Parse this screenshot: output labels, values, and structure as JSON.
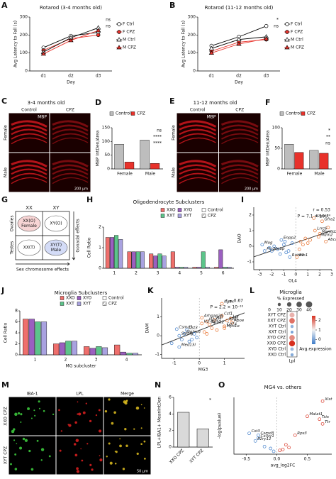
{
  "chart_data": [
    {
      "panel": "A",
      "type": "line",
      "title": "Rotarod (3-4 months old)",
      "x_label": "Day",
      "y_label": "Avg Latency to Fall (s)",
      "categories": [
        "d1",
        "d2",
        "d3"
      ],
      "ylim": [
        0,
        300
      ],
      "yticks": [
        0,
        100,
        200,
        300
      ],
      "series": [
        {
          "name": "F Ctrl",
          "color": "#ffffff",
          "line_color": "#000000",
          "marker": "circle",
          "values": [
            130,
            195,
            215
          ]
        },
        {
          "name": "F CPZ",
          "color": "#e8322b",
          "line_color": "#e8322b",
          "marker": "circle",
          "values": [
            115,
            180,
            200
          ]
        },
        {
          "name": "M Ctrl",
          "color": "#ffffff",
          "line_color": "#000000",
          "marker": "triangle",
          "values": [
            105,
            185,
            240
          ]
        },
        {
          "name": "M CPZ",
          "color": "#e8322b",
          "line_color": "#e8322b",
          "marker": "triangle",
          "values": [
            95,
            170,
            225
          ]
        }
      ],
      "annotations": [
        "ns",
        "ns"
      ]
    },
    {
      "panel": "B",
      "type": "line",
      "title": "Rotarod (11-12 months old)",
      "x_label": "Day",
      "y_label": "Avg Latency to Fall (s)",
      "categories": [
        "d1",
        "d2",
        "d3"
      ],
      "ylim": [
        0,
        300
      ],
      "yticks": [
        0,
        100,
        200,
        300
      ],
      "series": [
        {
          "name": "F Ctrl",
          "color": "#ffffff",
          "line_color": "#000000",
          "marker": "circle",
          "values": [
            140,
            190,
            250
          ]
        },
        {
          "name": "F CPZ",
          "color": "#e8322b",
          "line_color": "#e8322b",
          "marker": "circle",
          "values": [
            110,
            160,
            175
          ]
        },
        {
          "name": "M Ctrl",
          "color": "#ffffff",
          "line_color": "#000000",
          "marker": "triangle",
          "values": [
            125,
            175,
            190
          ]
        },
        {
          "name": "M CPZ",
          "color": "#e8322b",
          "line_color": "#e8322b",
          "marker": "triangle",
          "values": [
            100,
            150,
            180
          ]
        }
      ],
      "annotations": [
        "*",
        "ns"
      ]
    },
    {
      "panel": "D",
      "type": "groupbar",
      "y_label": "MBP IntDen/Area",
      "categories": [
        "Female",
        "Male"
      ],
      "ylim": [
        0,
        150
      ],
      "yticks": [
        0,
        50,
        100,
        150
      ],
      "series": [
        {
          "name": "Control",
          "color": "#bdbdbd",
          "values": [
            90,
            105
          ]
        },
        {
          "name": "CPZ",
          "color": "#e8322b",
          "values": [
            25,
            20
          ]
        }
      ],
      "annotations": [
        "ns",
        "****",
        "****"
      ]
    },
    {
      "panel": "F",
      "type": "groupbar",
      "y_label": "MBP IntDen/Area",
      "categories": [
        "Female",
        "Male"
      ],
      "ylim": [
        0,
        100
      ],
      "yticks": [
        0,
        50,
        100
      ],
      "series": [
        {
          "name": "Control",
          "color": "#bdbdbd",
          "values": [
            60,
            45
          ]
        },
        {
          "name": "CPZ",
          "color": "#e8322b",
          "values": [
            40,
            38
          ]
        }
      ],
      "annotations": [
        "*",
        "**",
        "ns"
      ]
    },
    {
      "panel": "H",
      "type": "groupbar",
      "title": "Oligodendrocyte Subclusters",
      "y_label": "Cell Ratio",
      "categories": [
        "1",
        "2",
        "3",
        "4",
        "5",
        "6"
      ],
      "ylim": [
        0,
        2
      ],
      "yticks": [
        0,
        1,
        2
      ],
      "series": [
        {
          "name": "XXO",
          "color": "#ef6f6c",
          "values": [
            1.5,
            0.8,
            0.7,
            0.8,
            0.05,
            0.05
          ]
        },
        {
          "name": "XYO",
          "color": "#9b5fc0",
          "values": [
            1.5,
            0.8,
            0.6,
            0.05,
            0.05,
            0.9
          ]
        },
        {
          "name": "XXT",
          "color": "#5cc48a",
          "values": [
            1.6,
            0.8,
            0.7,
            0.05,
            0.8,
            0.05
          ]
        },
        {
          "name": "XYT",
          "color": "#a9a2e0",
          "values": [
            1.4,
            0.8,
            0.6,
            0.05,
            0.05,
            0.05
          ]
        }
      ],
      "condition_legend": [
        "Control",
        "CPZ"
      ]
    },
    {
      "panel": "I",
      "type": "scatter",
      "x_label": "OL4",
      "y_label": "DAO",
      "xlim": [
        -3.5,
        3
      ],
      "xticks": [
        -3,
        -2,
        -1,
        0,
        1,
        2,
        3
      ],
      "ylim": [
        -1.5,
        2.5
      ],
      "yticks": [
        -1,
        0,
        1,
        2
      ],
      "annotations": [
        "r = 0.53",
        "P = 7.1 × 10⁻¹⁴"
      ],
      "colors": {
        "neg": "#3d7cc9",
        "pos": "#e8702b",
        "line": "#333333"
      },
      "x": [
        1.5,
        2.2,
        1.6,
        2.0,
        1.9,
        2.5,
        -1.2,
        -2.8,
        -2.6,
        -2.0,
        -0.5,
        0.1,
        -1.5,
        -1.0,
        -0.8,
        -0.3,
        0.4,
        0.8,
        1.2,
        -2.2,
        -1.8,
        -0.6,
        0.6,
        1.0,
        2.7,
        -1.3,
        0.3,
        -0.9
      ],
      "y": [
        1.8,
        1.6,
        1.0,
        0.8,
        0.6,
        0.3,
        0.4,
        0.1,
        -0.3,
        -0.3,
        -0.7,
        -0.7,
        -0.2,
        0.1,
        -0.4,
        0.2,
        0.3,
        0.5,
        0.4,
        -0.1,
        0.0,
        -0.3,
        0.1,
        0.2,
        1.2,
        -0.5,
        -0.2,
        0.3
      ],
      "labels": [
        "Kirrel3",
        "Gfra1",
        "Lrrc6",
        "Mamld1",
        "Mdm2",
        "Abca1",
        "Enpp2",
        "Mog",
        "Plp1",
        "Mobp",
        "Robo1",
        "Bin1",
        null,
        null,
        null,
        null,
        null,
        null,
        null,
        null,
        null,
        null,
        null,
        null,
        null,
        null,
        null,
        null
      ]
    },
    {
      "panel": "J",
      "type": "groupbar",
      "title": "Microglia Subclusters",
      "x_label": "MG subcluster",
      "y_label": "Cell Ratio",
      "categories": [
        "1",
        "2",
        "3",
        "4"
      ],
      "ylim": [
        0,
        8
      ],
      "yticks": [
        0,
        2,
        4,
        6,
        8
      ],
      "series": [
        {
          "name": "XXO",
          "color": "#ef6f6c",
          "values": [
            6.5,
            2,
            1.5,
            1.8
          ]
        },
        {
          "name": "XYO",
          "color": "#9b5fc0",
          "values": [
            6.5,
            2.2,
            1.2,
            0.5
          ]
        },
        {
          "name": "XXT",
          "color": "#5cc48a",
          "values": [
            6,
            2.5,
            1.5,
            0.3
          ]
        },
        {
          "name": "XYT",
          "color": "#a9a2e0",
          "values": [
            6,
            2.5,
            1.3,
            0.3
          ]
        }
      ],
      "condition_legend": [
        "Control",
        "CPZ"
      ]
    },
    {
      "panel": "K",
      "type": "scatter",
      "x_label": "MG3",
      "y_label": "DAM",
      "xlim": [
        -1.5,
        1.8
      ],
      "xticks": [
        -1,
        0,
        1
      ],
      "ylim": [
        -1.2,
        2
      ],
      "yticks": [
        -1,
        0,
        1
      ],
      "annotations": [
        "r = 0.67",
        "P = 2.2 × 10⁻¹⁶"
      ],
      "colors": {
        "neg": "#3d7cc9",
        "pos": "#e8702b",
        "line": "#333333"
      },
      "x": [
        0.9,
        0.9,
        1.25,
        1.1,
        1.3,
        0.6,
        0.1,
        0.3,
        0.1,
        0.4,
        1.0,
        1.0,
        -0.5,
        -0.9,
        -0.6,
        -0.8,
        -0.8,
        -0.3,
        -0.2,
        0.2,
        0.5,
        -1.1,
        -0.4,
        0.7,
        -0.1,
        0.3,
        -0.7
      ],
      "y": [
        1.7,
        1.05,
        0.9,
        0.8,
        0.7,
        0.85,
        0.95,
        0.75,
        0.65,
        0.6,
        0.5,
        0.4,
        0.3,
        0.35,
        0.1,
        0.0,
        -0.6,
        -0.2,
        0.1,
        0.2,
        0.4,
        -0.4,
        -0.3,
        0.3,
        -0.1,
        0.1,
        -0.2
      ],
      "labels": [
        "Itgax",
        "Csf1",
        "Lpl",
        "Spp1",
        "Apoe",
        "Axl",
        "Arhgap26",
        "H2-D1",
        "H2-K1",
        "Apbb2",
        "Cd74",
        "Myo1e",
        "Cst3",
        "Csmd3",
        "Siglech",
        "Selplg",
        "Med13l",
        null,
        null,
        null,
        null,
        null,
        null,
        null,
        null,
        null,
        null
      ]
    },
    {
      "panel": "L",
      "type": "dot",
      "title": "Microglia",
      "size_title": "% Expressed",
      "color_title": "Avg.expression",
      "x_label": "Lpl",
      "rows": [
        "XYT CPZ",
        "XXT CPZ",
        "XYT Ctrl",
        "XXT Ctrl",
        "XYO CPZ",
        "XXO CPZ",
        "XYO Ctrl",
        "XXO Ctrl"
      ],
      "pct": [
        25,
        30,
        10,
        8,
        30,
        35,
        12,
        10
      ],
      "avg": [
        1.5,
        2,
        0.2,
        0,
        1.8,
        2.5,
        0.3,
        0.1
      ],
      "size_ticks": [
        0,
        10,
        20,
        30,
        40
      ],
      "clim": [
        -0.5,
        2.5
      ],
      "color_ticks": [
        0,
        1,
        2
      ],
      "colors": {
        "low": "#3d7cc9",
        "mid": "#f2f2f2",
        "high": "#d7301f"
      }
    },
    {
      "panel": "N",
      "type": "bar",
      "y_label": "LPL+IBA1+ MeanIntDen",
      "categories": [
        "XXO CPZ",
        "XYT CPZ"
      ],
      "values": [
        4.2,
        2.2
      ],
      "color": "#d9d9d9",
      "ylim": [
        0,
        6
      ],
      "yticks": [
        0,
        2,
        4,
        6
      ],
      "annotations": [
        "*"
      ]
    },
    {
      "panel": "O",
      "type": "scatter",
      "title": "MG4 vs. others",
      "x_label": "avg_log2FC",
      "y_label": "-log(pvalue)",
      "xlim": [
        -0.7,
        0.9
      ],
      "xticks": [
        -0.5,
        {
          "value": 0,
          "label": "0.0"
        },
        0.5
      ],
      "ylim": [
        0,
        300
      ],
      "colors": {
        "neg": "#3d7cc9",
        "pos": "#d7301f",
        "line": null
      },
      "x": [
        0.75,
        0.5,
        0.7,
        0.75,
        0.3,
        -0.45,
        -0.3,
        -0.3,
        -0.35,
        -0.1,
        0.1,
        -0.2,
        0.15,
        -0.05,
        0.05,
        0.2
      ],
      "y": [
        280,
        200,
        185,
        160,
        100,
        110,
        100,
        85,
        70,
        30,
        25,
        40,
        50,
        15,
        20,
        35
      ],
      "labels": [
        "Xist",
        "Malat1",
        "Tsix",
        "Ttr",
        "Rps3",
        "Cst3",
        "Csmd3",
        "Cx3cr1",
        "P2ry12",
        null,
        null,
        null,
        null,
        null,
        null,
        null
      ]
    }
  ],
  "images": [
    {
      "panel": "C",
      "title": "3-4 months old",
      "columns": [
        "Control",
        "CPZ"
      ],
      "rows": [
        "Female",
        "Male"
      ],
      "stain": "MBP",
      "scale_bar": "200 μm"
    },
    {
      "panel": "E",
      "title": "11-12 months old",
      "columns": [
        "Control",
        "CPZ"
      ],
      "rows": [
        "Female",
        "Male"
      ],
      "stain": "MBP",
      "scale_bar": "200 μm"
    },
    {
      "panel": "M",
      "columns": [
        "IBA-1",
        "LPL",
        "Merge"
      ],
      "rows": [
        "XXO CPZ",
        "XYT CPZ"
      ],
      "scale_bar": "50 μm"
    }
  ],
  "diagram": {
    "panel": "G",
    "columns": [
      "XX",
      "XY"
    ],
    "rows": [
      "Ovaries",
      "Testes"
    ],
    "cells": [
      [
        "XX(O)",
        "Female"
      ],
      [
        "XY(O)"
      ],
      [
        "XX(T)"
      ],
      [
        "XY(T)",
        "Male"
      ]
    ],
    "gonadal_label": "Gonadal effects",
    "chromosome_label": "Sex chromosome effects"
  }
}
